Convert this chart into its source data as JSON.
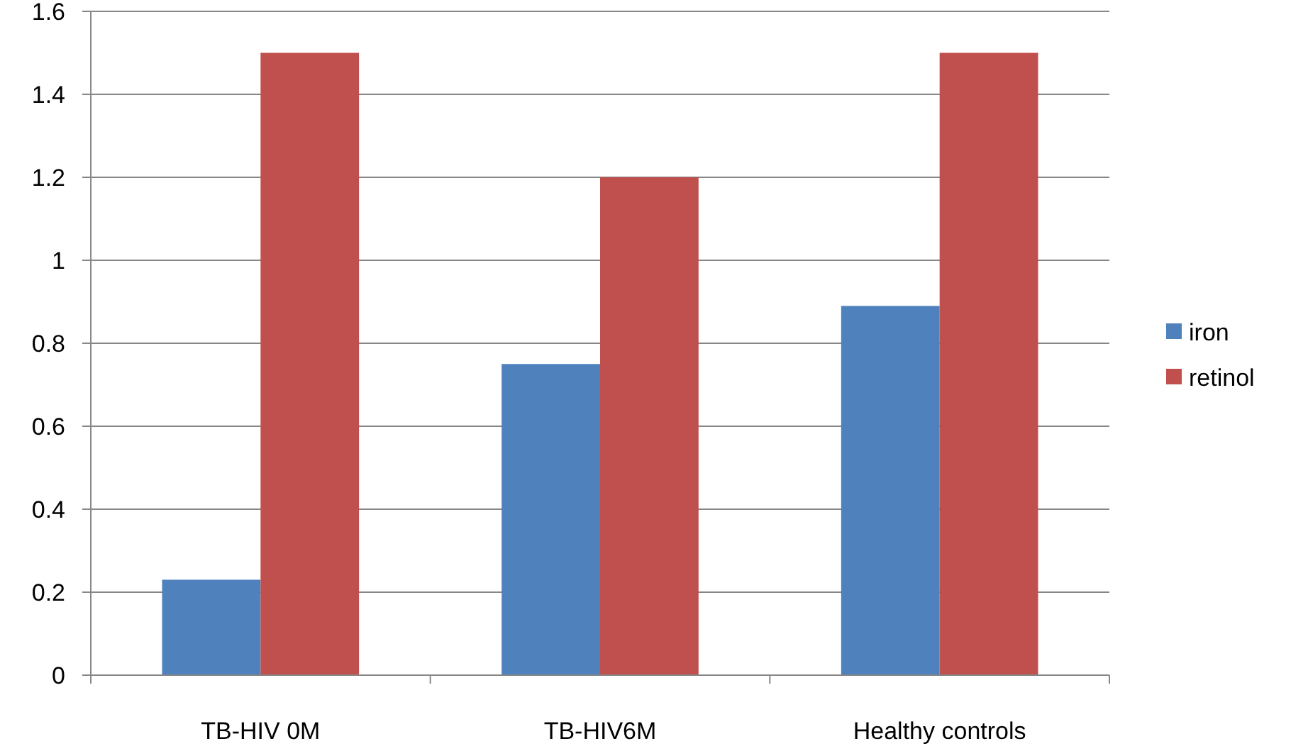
{
  "chart_data": {
    "type": "bar",
    "categories": [
      "TB-HIV 0M",
      "TB-HIV6M",
      "Healthy controls"
    ],
    "series": [
      {
        "name": "iron",
        "color": "#4f81bd",
        "values": [
          0.23,
          0.75,
          0.89
        ]
      },
      {
        "name": "retinol",
        "color": "#c0504d",
        "values": [
          1.5,
          1.2,
          1.5
        ]
      }
    ],
    "ylim": [
      0,
      1.6
    ],
    "yticks": [
      0,
      0.2,
      0.4,
      0.6,
      0.8,
      1,
      1.2,
      1.4,
      1.6
    ],
    "grid": "y",
    "legend": "right"
  }
}
